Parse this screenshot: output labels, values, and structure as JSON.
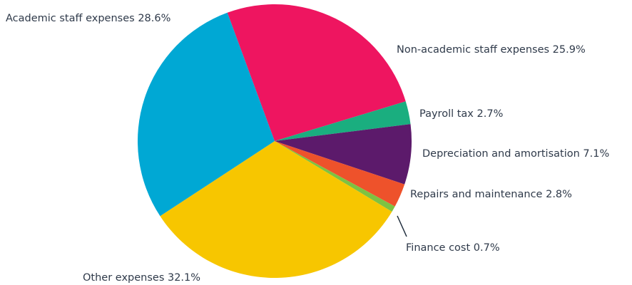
{
  "chart_data": {
    "type": "pie",
    "categories": [
      "Non-academic staff expenses",
      "Payroll tax",
      "Depreciation and amortisation",
      "Repairs and maintenance",
      "Finance cost",
      "Other expenses",
      "Academic staff expenses"
    ],
    "values": [
      25.9,
      2.7,
      7.1,
      2.8,
      0.7,
      32.1,
      28.6
    ],
    "value_labels": [
      "25.9%",
      "2.7%",
      "7.1%",
      "2.8%",
      "0.7%",
      "32.1%",
      "28.6%"
    ],
    "colors": [
      "#ee1560",
      "#1aae7f",
      "#5c1a6b",
      "#ee522b",
      "#7dc242",
      "#f7c600",
      "#00a8d4"
    ]
  }
}
